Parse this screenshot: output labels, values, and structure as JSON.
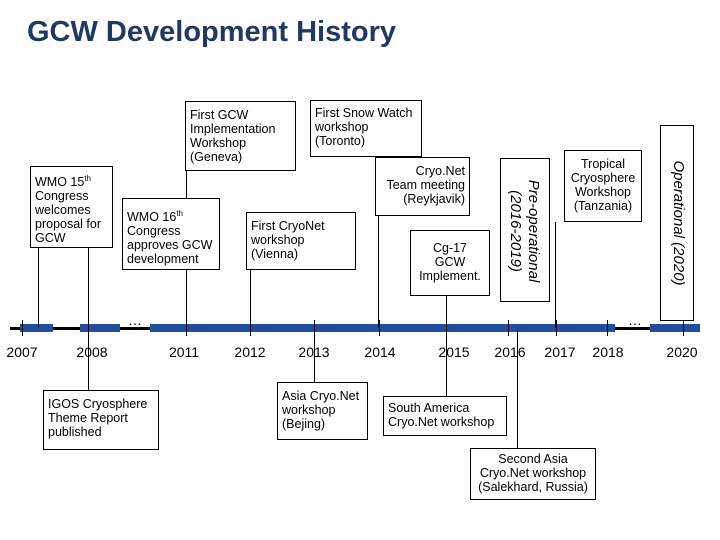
{
  "title": "GCW Development History",
  "years": [
    "2007",
    "2008",
    "2011",
    "2012",
    "2013",
    "2014",
    "2015",
    "2016",
    "2017",
    "2018",
    "2020"
  ],
  "ellipsis": "…",
  "events_above": {
    "wmo15": [
      "WMO 15",
      "th",
      "Congress",
      "welcomes",
      "proposal for",
      "GCW"
    ],
    "first_impl": [
      "First GCW",
      "Implementation",
      "Workshop",
      "(Geneva)"
    ],
    "wmo16": [
      "WMO 16",
      "th",
      "Congress",
      "approves GCW",
      "development"
    ],
    "snow_watch": [
      "First Snow Watch",
      "workshop",
      "(Toronto)"
    ],
    "cryonet_vienna": [
      "First CryoNet",
      "workshop",
      "(Vienna)"
    ],
    "cryonet_reykjavik": [
      "Cryo.Net",
      "Team meeting",
      "(Reykjavik)"
    ],
    "cg17": [
      "Cg-17",
      "GCW",
      "Implement."
    ],
    "tropical": [
      "Tropical",
      "Cryosphere",
      "Workshop",
      "(Tanzania)"
    ]
  },
  "events_below": {
    "igos": [
      "IGOS Cryosphere",
      "Theme Report",
      "published"
    ],
    "asia_cryonet": [
      "Asia Cryo.Net",
      "workshop",
      "(Bejing)"
    ],
    "south_america": [
      "South America",
      "Cryo.Net workshop"
    ],
    "second_asia": [
      "Second Asia",
      "Cryo.Net workshop",
      "(Salekhard, Russia)"
    ]
  },
  "phases": {
    "pre_operational": [
      "Pre-operational",
      "(2016-2019)"
    ],
    "operational": "Operational (2020)"
  },
  "colors": {
    "title": "#1f3864",
    "timeline_accent": "#1f4e9c"
  }
}
